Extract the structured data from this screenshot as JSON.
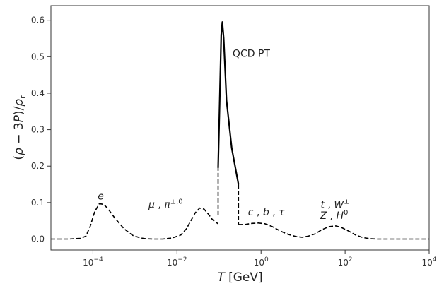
{
  "chart_data": {
    "type": "line",
    "xlabel": "T [GeV]",
    "ylabel": "(ρ − 3P)/ρr",
    "xscale": "log",
    "xlim": [
      1e-05,
      10000.0
    ],
    "ylim": [
      -0.03,
      0.64
    ],
    "grid": false,
    "x_ticks": [
      {
        "value": 0.0001,
        "base": "10",
        "exp": "−4"
      },
      {
        "value": 0.01,
        "base": "10",
        "exp": "−2"
      },
      {
        "value": 1,
        "base": "10",
        "exp": "0"
      },
      {
        "value": 100,
        "base": "10",
        "exp": "2"
      },
      {
        "value": 10000,
        "base": "10",
        "exp": "4"
      }
    ],
    "y_ticks": [
      {
        "value": 0.0,
        "label": "0.0"
      },
      {
        "value": 0.1,
        "label": "0.1"
      },
      {
        "value": 0.2,
        "label": "0.2"
      },
      {
        "value": 0.3,
        "label": "0.3"
      },
      {
        "value": 0.4,
        "label": "0.4"
      },
      {
        "value": 0.5,
        "label": "0.5"
      },
      {
        "value": 0.6,
        "label": "0.6"
      }
    ],
    "series": [
      {
        "style": "dashed",
        "color": "#000000",
        "points": [
          [
            1e-05,
            0.0
          ],
          [
            2.6e-05,
            0.0
          ],
          [
            5.1e-05,
            0.002
          ],
          [
            6.8e-05,
            0.008
          ],
          [
            8.6e-05,
            0.035
          ],
          [
            0.00011,
            0.075
          ],
          [
            0.000142,
            0.097
          ],
          [
            0.000182,
            0.095
          ],
          [
            0.000232,
            0.082
          ],
          [
            0.000331,
            0.058
          ],
          [
            0.00055,
            0.028
          ],
          [
            0.00088,
            0.01
          ],
          [
            0.00137,
            0.003
          ],
          [
            0.0018,
            0.001
          ],
          [
            0.00267,
            0.0
          ],
          [
            0.00457,
            0.0
          ],
          [
            0.0077,
            0.003
          ],
          [
            0.0123,
            0.011
          ],
          [
            0.0167,
            0.028
          ],
          [
            0.0213,
            0.05
          ],
          [
            0.0272,
            0.072
          ],
          [
            0.0347,
            0.085
          ],
          [
            0.0442,
            0.082
          ],
          [
            0.0562,
            0.068
          ],
          [
            0.068,
            0.055
          ],
          [
            0.078,
            0.048
          ],
          [
            0.087,
            0.045
          ],
          [
            0.095,
            0.042
          ]
        ]
      },
      {
        "style": "dashed",
        "color": "#000000",
        "points": [
          [
            0.095,
            0.065
          ],
          [
            0.095,
            0.195
          ]
        ]
      },
      {
        "style": "solid",
        "color": "#000000",
        "points": [
          [
            0.095,
            0.195
          ],
          [
            0.105,
            0.4
          ],
          [
            0.113,
            0.56
          ],
          [
            0.12,
            0.595
          ],
          [
            0.129,
            0.55
          ],
          [
            0.151,
            0.38
          ],
          [
            0.2,
            0.25
          ],
          [
            0.26,
            0.18
          ],
          [
            0.29,
            0.15
          ]
        ]
      },
      {
        "style": "dashed",
        "color": "#000000",
        "points": [
          [
            0.29,
            0.15
          ],
          [
            0.29,
            0.04
          ]
        ]
      },
      {
        "style": "dashed",
        "color": "#000000",
        "points": [
          [
            0.29,
            0.04
          ],
          [
            0.413,
            0.04
          ],
          [
            0.608,
            0.043
          ],
          [
            0.87,
            0.044
          ],
          [
            1.23,
            0.042
          ],
          [
            1.86,
            0.034
          ],
          [
            2.85,
            0.022
          ],
          [
            4.39,
            0.013
          ],
          [
            6.72,
            0.007
          ],
          [
            9.45,
            0.005
          ],
          [
            13.3,
            0.008
          ],
          [
            19.1,
            0.014
          ],
          [
            28.4,
            0.026
          ],
          [
            41.3,
            0.034
          ],
          [
            60.2,
            0.036
          ],
          [
            84.6,
            0.031
          ],
          [
            121,
            0.022
          ],
          [
            178,
            0.011
          ],
          [
            265,
            0.004
          ],
          [
            391,
            0.001
          ],
          [
            580,
            0.0
          ],
          [
            1000,
            0.0
          ],
          [
            10000,
            0.0
          ]
        ]
      }
    ],
    "annotations": [
      {
        "id": "electron",
        "x": 0.00013,
        "y": 0.108,
        "label": "e"
      },
      {
        "id": "muon-pion",
        "x": 0.0021,
        "y": 0.085,
        "label": "μ , π±,0"
      },
      {
        "id": "qcd-pt",
        "x": 0.21,
        "y": 0.5,
        "label": "QCD PT"
      },
      {
        "id": "cbtau",
        "x": 0.49,
        "y": 0.065,
        "label": "c , b , τ"
      },
      {
        "id": "t-w",
        "x": 26.2,
        "y": 0.085,
        "label": "t , W±"
      },
      {
        "id": "z-h",
        "x": 25.2,
        "y": 0.055,
        "label": "Z , H0"
      }
    ]
  }
}
